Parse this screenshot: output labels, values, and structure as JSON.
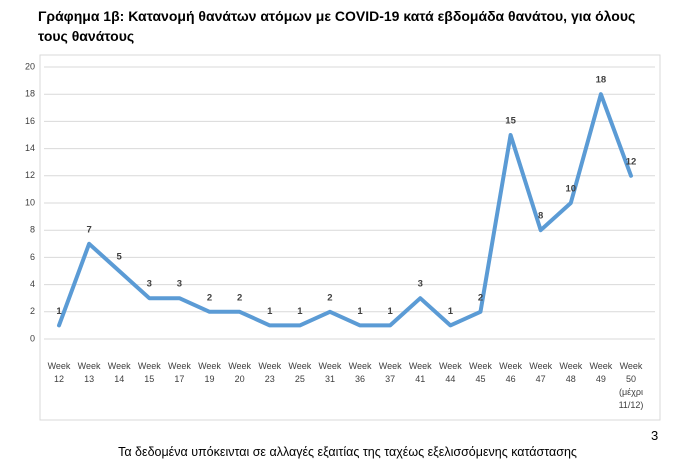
{
  "chart_data": {
    "type": "line",
    "title": "Γράφημα 1β: Κατανομή θανάτων ατόμων με COVID-19 κατά εβδομάδα θανάτου, για όλους τους θανάτους",
    "categories": [
      "Week 12",
      "Week 13",
      "Week 14",
      "Week 15",
      "Week 17",
      "Week 19",
      "Week 20",
      "Week 23",
      "Week 25",
      "Week 31",
      "Week 36",
      "Week 37",
      "Week 41",
      "Week 44",
      "Week 45",
      "Week 46",
      "Week 47",
      "Week 48",
      "Week 49",
      "Week 50 (μέχρι 11/12)"
    ],
    "values": [
      1,
      7,
      5,
      3,
      3,
      2,
      2,
      1,
      1,
      2,
      1,
      1,
      3,
      1,
      2,
      15,
      8,
      10,
      18,
      12
    ],
    "color": "#5b9bd5",
    "ylim": [
      0,
      20
    ],
    "yticks": [
      0,
      2,
      4,
      6,
      8,
      10,
      12,
      14,
      16,
      18,
      20
    ],
    "grid": true
  },
  "footer": "Τα δεδομένα υπόκεινται σε αλλαγές εξαιτίας της ταχέως εξελισσόμενης κατάστασης",
  "page_number": "3"
}
